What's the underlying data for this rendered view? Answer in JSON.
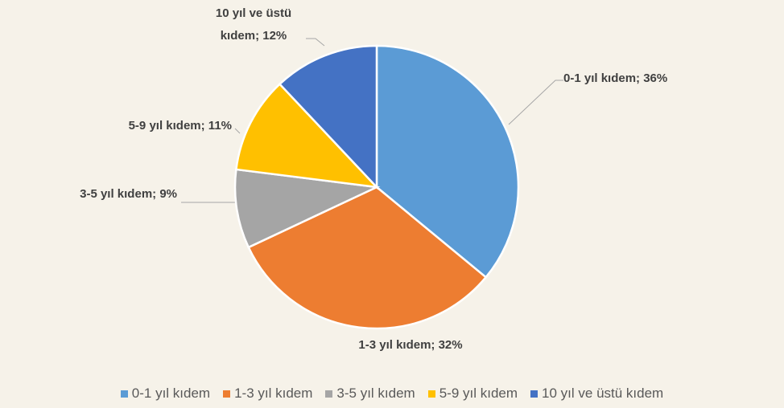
{
  "chart_data": {
    "type": "pie",
    "categories": [
      "0-1 yıl kıdem",
      "1-3 yıl kıdem",
      "3-5 yıl kıdem",
      "5-9 yıl kıdem",
      "10 yıl ve üstü kıdem"
    ],
    "values": [
      36,
      32,
      9,
      11,
      12
    ],
    "value_labels": [
      "0-1 yıl kıdem; 36%",
      "1-3 yıl kıdem; 32%",
      "3-5 yıl kıdem; 9%",
      "5-9 yıl kıdem; 11%",
      "10 yıl ve üstü kıdem; 12%"
    ],
    "colors": [
      "#5b9bd5",
      "#ed7d31",
      "#a5a5a5",
      "#ffc000",
      "#4472c4"
    ],
    "legend": "bottom"
  }
}
